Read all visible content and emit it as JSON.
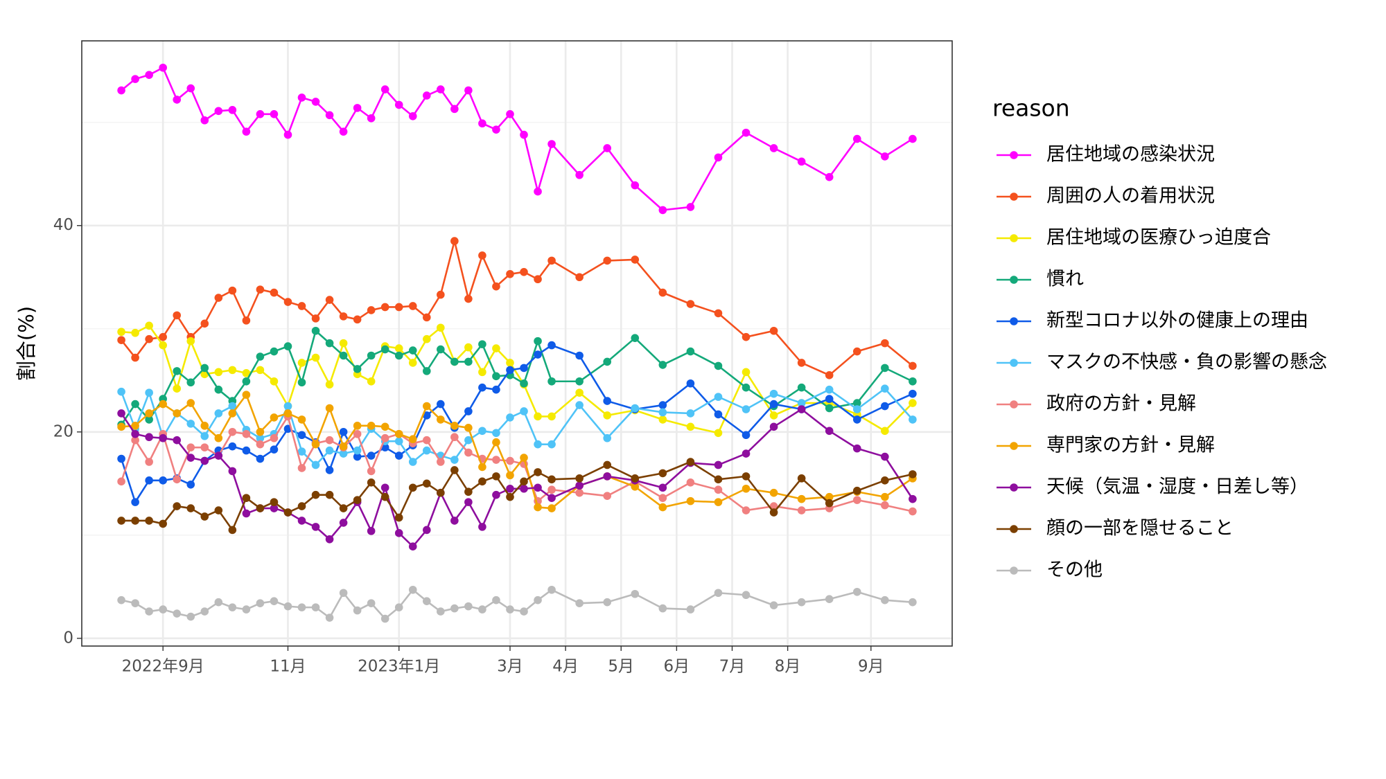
{
  "chart_data": {
    "type": "line",
    "ylabel": "割合(%)",
    "legend_title": "reason",
    "legend": "right",
    "grid": true,
    "xlim": [
      -2.85,
      59.85
    ],
    "xticks": [
      {
        "value": 3,
        "label": "2022年9月"
      },
      {
        "value": 12,
        "label": "11月"
      },
      {
        "value": 20,
        "label": "2023年1月"
      },
      {
        "value": 28,
        "label": "3月"
      },
      {
        "value": 32,
        "label": "4月"
      },
      {
        "value": 36,
        "label": "5月"
      },
      {
        "value": 40,
        "label": "6月"
      },
      {
        "value": 44,
        "label": "7月"
      },
      {
        "value": 48,
        "label": "8月"
      },
      {
        "value": 54,
        "label": "9月"
      }
    ],
    "ylim": [
      -0.75,
      57.9
    ],
    "yticks": [
      0,
      20,
      40
    ],
    "y_minor_ticks": [
      10,
      30,
      50
    ],
    "x": [
      0,
      1,
      2,
      3,
      4,
      5,
      6,
      7,
      8,
      9,
      10,
      11,
      12,
      13,
      14,
      15,
      16,
      17,
      18,
      19,
      20,
      21,
      22,
      23,
      24,
      25,
      26,
      27,
      28,
      29,
      30,
      31,
      33,
      35,
      37,
      39,
      41,
      43,
      45,
      47,
      49,
      51,
      53,
      55,
      57
    ],
    "series": [
      {
        "name": "居住地域の感染状況",
        "color": "#ff00ff",
        "values": [
          53.1,
          54.2,
          54.6,
          55.3,
          52.2,
          53.3,
          50.2,
          51.1,
          51.2,
          49.1,
          50.8,
          50.8,
          48.8,
          52.4,
          52.0,
          50.7,
          49.1,
          51.4,
          50.4,
          53.2,
          51.7,
          50.6,
          52.6,
          53.2,
          51.3,
          53.1,
          49.9,
          49.3,
          50.8,
          48.8,
          43.3,
          47.9,
          44.9,
          47.5,
          43.9,
          41.5,
          41.8,
          46.6,
          49.0,
          47.5,
          46.2,
          44.7,
          48.4,
          46.7,
          48.4
        ]
      },
      {
        "name": "周囲の人の着用状況",
        "color": "#f4511e",
        "values": [
          28.9,
          27.2,
          29.0,
          29.2,
          31.3,
          29.2,
          30.5,
          33.0,
          33.7,
          30.8,
          33.8,
          33.5,
          32.6,
          32.2,
          31.0,
          32.8,
          31.2,
          30.9,
          31.8,
          32.1,
          32.1,
          32.2,
          31.1,
          33.3,
          38.5,
          32.9,
          37.1,
          34.1,
          35.3,
          35.5,
          34.8,
          36.6,
          35.0,
          36.6,
          36.7,
          33.5,
          32.4,
          31.5,
          29.2,
          29.8,
          26.7,
          25.5,
          27.8,
          28.6,
          26.4
        ]
      },
      {
        "name": "居住地域の医療ひっ迫度合",
        "color": "#f5ea00",
        "values": [
          29.7,
          29.6,
          30.3,
          28.4,
          24.2,
          28.8,
          25.6,
          25.8,
          26.0,
          25.7,
          26.0,
          24.9,
          22.5,
          26.7,
          27.2,
          24.6,
          28.6,
          25.6,
          24.9,
          28.3,
          28.1,
          26.7,
          29.0,
          30.1,
          26.8,
          28.2,
          25.8,
          28.1,
          26.7,
          24.6,
          21.5,
          21.5,
          23.8,
          21.6,
          22.1,
          21.2,
          20.5,
          19.9,
          25.8,
          21.6,
          22.8,
          22.8,
          21.7,
          20.1,
          22.8
        ]
      },
      {
        "name": "慣れ",
        "color": "#14a97a",
        "values": [
          20.7,
          22.7,
          21.2,
          23.2,
          25.9,
          24.8,
          26.2,
          24.1,
          23.0,
          24.9,
          27.3,
          27.8,
          28.3,
          24.8,
          29.8,
          28.6,
          27.4,
          26.1,
          27.4,
          28.0,
          27.4,
          27.9,
          25.9,
          28.0,
          26.8,
          26.8,
          28.5,
          25.4,
          25.5,
          24.7,
          28.8,
          24.9,
          24.9,
          26.8,
          29.1,
          26.5,
          27.8,
          26.4,
          24.3,
          22.5,
          24.3,
          22.3,
          22.8,
          26.2,
          24.9
        ]
      },
      {
        "name": "新型コロナ以外の健康上の理由",
        "color": "#0f5be8",
        "values": [
          17.4,
          13.2,
          15.3,
          15.3,
          15.5,
          14.9,
          17.2,
          18.2,
          18.6,
          18.2,
          17.4,
          18.3,
          20.3,
          19.7,
          19.0,
          16.3,
          20.0,
          17.6,
          17.7,
          18.5,
          17.7,
          18.7,
          21.6,
          22.7,
          20.4,
          22.0,
          24.3,
          24.1,
          26.0,
          26.2,
          27.5,
          28.4,
          27.4,
          23.0,
          22.2,
          22.6,
          24.7,
          21.7,
          19.7,
          22.7,
          22.2,
          23.2,
          21.2,
          22.5,
          23.7
        ]
      },
      {
        "name": "マスクの不快感・負の影響の懸念",
        "color": "#4fc3f7",
        "values": [
          23.9,
          20.3,
          23.8,
          19.5,
          21.8,
          20.8,
          19.6,
          21.8,
          22.5,
          20.2,
          19.4,
          19.8,
          22.5,
          18.1,
          16.8,
          18.2,
          17.9,
          18.2,
          20.3,
          19.1,
          19.1,
          17.1,
          18.2,
          17.7,
          17.3,
          19.2,
          20.1,
          19.9,
          21.4,
          22.0,
          18.8,
          18.8,
          22.6,
          19.4,
          22.3,
          21.9,
          21.8,
          23.4,
          22.2,
          23.7,
          22.8,
          24.1,
          22.2,
          24.2,
          21.2
        ]
      },
      {
        "name": "政府の方針・見解",
        "color": "#f08080",
        "values": [
          15.2,
          19.2,
          17.1,
          19.8,
          15.4,
          18.5,
          18.5,
          17.7,
          20.0,
          19.8,
          18.8,
          19.4,
          21.5,
          16.5,
          18.9,
          19.2,
          18.5,
          19.8,
          16.2,
          19.4,
          19.8,
          18.9,
          19.2,
          17.1,
          19.5,
          18.0,
          17.4,
          17.3,
          17.2,
          16.9,
          13.3,
          14.4,
          14.1,
          13.8,
          15.2,
          13.6,
          15.1,
          14.4,
          12.4,
          12.8,
          12.4,
          12.6,
          13.4,
          12.9,
          12.3
        ]
      },
      {
        "name": "専門家の方針・見解",
        "color": "#f2a400",
        "values": [
          20.5,
          20.6,
          21.8,
          22.7,
          21.8,
          22.8,
          20.6,
          19.4,
          21.8,
          23.6,
          20.0,
          21.4,
          21.8,
          21.2,
          18.8,
          22.3,
          18.6,
          20.6,
          20.6,
          20.5,
          19.8,
          19.3,
          22.5,
          21.2,
          20.6,
          20.4,
          16.6,
          19.0,
          15.8,
          17.5,
          12.7,
          12.6,
          14.8,
          15.7,
          14.7,
          12.7,
          13.3,
          13.2,
          14.5,
          14.1,
          13.5,
          13.7,
          14.2,
          13.7,
          15.5
        ]
      },
      {
        "name": "天候（気温・湿度・日差し等）",
        "color": "#8e0e9e",
        "values": [
          21.8,
          19.8,
          19.5,
          19.4,
          19.2,
          17.5,
          17.2,
          17.7,
          16.2,
          12.1,
          12.6,
          12.6,
          12.2,
          11.4,
          10.8,
          9.6,
          11.2,
          13.2,
          10.4,
          14.6,
          10.2,
          8.9,
          10.5,
          14.1,
          11.4,
          13.2,
          10.8,
          13.9,
          14.5,
          14.5,
          14.6,
          13.6,
          14.8,
          15.7,
          15.3,
          14.6,
          17.0,
          16.8,
          17.9,
          20.5,
          22.2,
          20.1,
          18.4,
          17.6,
          13.5
        ]
      },
      {
        "name": "顔の一部を隠せること",
        "color": "#7b3f00",
        "values": [
          11.4,
          11.4,
          11.4,
          11.1,
          12.8,
          12.6,
          11.8,
          12.4,
          10.5,
          13.6,
          12.6,
          13.2,
          12.2,
          12.8,
          13.9,
          13.9,
          12.6,
          13.4,
          15.1,
          13.7,
          11.7,
          14.6,
          15.0,
          14.1,
          16.3,
          14.2,
          15.2,
          15.7,
          13.7,
          15.2,
          16.1,
          15.4,
          15.5,
          16.8,
          15.5,
          16.0,
          17.1,
          15.4,
          15.7,
          12.2,
          15.5,
          13.1,
          14.3,
          15.3,
          15.9
        ]
      },
      {
        "name": "その他",
        "color": "#bbbbbb",
        "values": [
          3.7,
          3.4,
          2.6,
          2.8,
          2.4,
          2.1,
          2.6,
          3.5,
          3.0,
          2.8,
          3.4,
          3.6,
          3.1,
          3.0,
          3.0,
          2.0,
          4.4,
          2.7,
          3.4,
          1.9,
          3.0,
          4.7,
          3.6,
          2.6,
          2.9,
          3.1,
          2.8,
          3.7,
          2.8,
          2.6,
          3.7,
          4.7,
          3.4,
          3.5,
          4.3,
          2.9,
          2.8,
          4.4,
          4.2,
          3.2,
          3.5,
          3.8,
          4.5,
          3.7,
          3.5
        ]
      }
    ]
  }
}
